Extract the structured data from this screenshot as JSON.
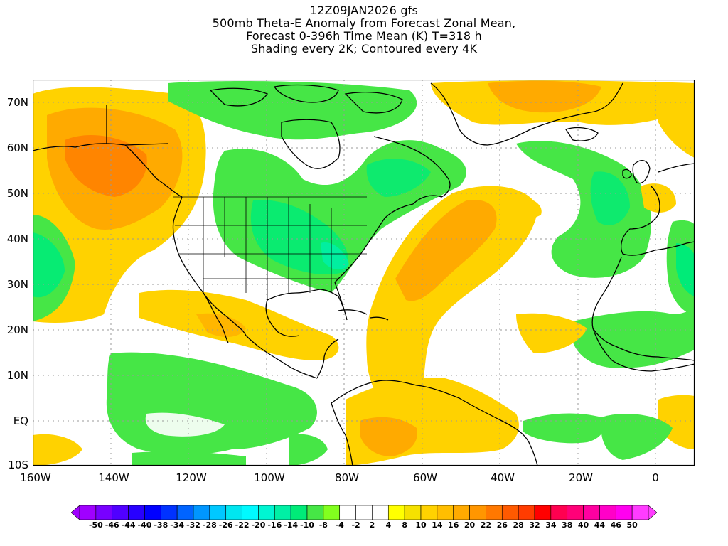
{
  "title": {
    "line1": "12Z09JAN2026 gfs",
    "line2": "500mb Theta-E Anomaly from Forecast Zonal Mean,",
    "line3": "Forecast 0-396h Time Mean (K) T=318 h",
    "line4": "Shading every 2K; Contoured every 4K"
  },
  "lat_labels": [
    "70N",
    "60N",
    "50N",
    "40N",
    "30N",
    "20N",
    "10N",
    "EQ",
    "10S"
  ],
  "lon_labels": [
    "160W",
    "140W",
    "120W",
    "100W",
    "80W",
    "60W",
    "40W",
    "20W",
    "0"
  ],
  "colorbar": {
    "labels": [
      "-50",
      "-46",
      "-44",
      "-40",
      "-38",
      "-34",
      "-32",
      "-28",
      "-26",
      "-22",
      "-20",
      "-16",
      "-14",
      "-10",
      "-8",
      "-4",
      "-2",
      "2",
      "4",
      "8",
      "10",
      "14",
      "16",
      "20",
      "22",
      "26",
      "28",
      "32",
      "34",
      "38",
      "40",
      "44",
      "46",
      "50"
    ],
    "colors": [
      "#a000ff",
      "#7800ff",
      "#5000ff",
      "#2800ff",
      "#0000ff",
      "#0032ff",
      "#0064ff",
      "#0096ff",
      "#00c8ff",
      "#00e6f0",
      "#00faff",
      "#00f5d2",
      "#00f0a5",
      "#00eb78",
      "#46e646",
      "#82ff1e",
      "#ffffff",
      "#ffffff",
      "#ffffff",
      "#ffff00",
      "#f5e100",
      "#ffd200",
      "#ffbe00",
      "#ffaa00",
      "#ff9600",
      "#ff7800",
      "#ff5a00",
      "#ff3c00",
      "#ff0000",
      "#ff0050",
      "#ff0078",
      "#ff00a0",
      "#ff00c8",
      "#ff00f0",
      "#ff3cff"
    ]
  }
}
